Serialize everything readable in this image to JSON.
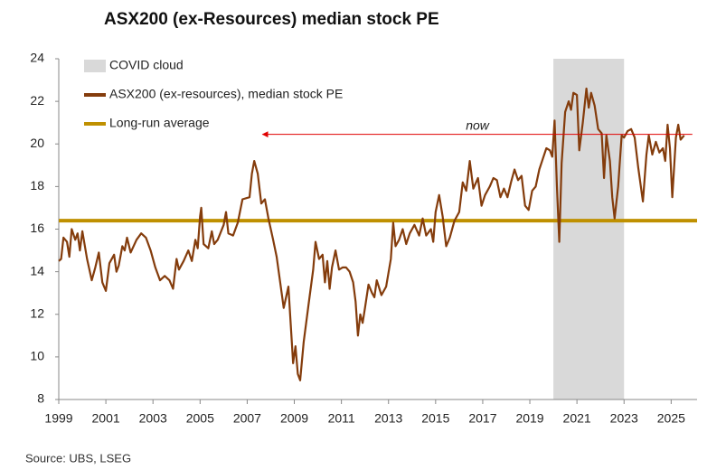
{
  "chart_data": {
    "type": "line",
    "title": "ASX200 (ex-Resources) median stock PE",
    "source": "Source: UBS, LSEG",
    "xlim": [
      1999,
      2026.1
    ],
    "ylim": [
      8,
      24
    ],
    "xticks": [
      1999,
      2001,
      2003,
      2005,
      2007,
      2009,
      2011,
      2013,
      2015,
      2017,
      2019,
      2021,
      2023,
      2025
    ],
    "yticks": [
      8,
      10,
      12,
      14,
      16,
      18,
      20,
      22,
      24
    ],
    "shaded_regions": [
      {
        "name": "COVID cloud",
        "start": 2020,
        "end": 2023,
        "color": "#d9d9d9"
      }
    ],
    "reference_lines": [
      {
        "name": "Long-run average",
        "value": 16.4,
        "color": "#bf9000"
      }
    ],
    "annotations": [
      {
        "text": "now",
        "x_start": 2025.9,
        "x_end": 2007.65,
        "y": 20.45,
        "color": "#e00000"
      }
    ],
    "x": [
      1999.0,
      1999.1,
      1999.2,
      1999.35,
      1999.45,
      1999.55,
      1999.7,
      1999.8,
      1999.9,
      2000.0,
      2000.2,
      2000.4,
      2000.55,
      2000.7,
      2000.85,
      2001.0,
      2001.15,
      2001.35,
      2001.45,
      2001.55,
      2001.7,
      2001.8,
      2001.9,
      2002.05,
      2002.3,
      2002.5,
      2002.7,
      2002.9,
      2003.1,
      2003.3,
      2003.5,
      2003.7,
      2003.85,
      2004.0,
      2004.1,
      2004.3,
      2004.5,
      2004.65,
      2004.8,
      2004.9,
      2005.0,
      2005.05,
      2005.15,
      2005.35,
      2005.5,
      2005.6,
      2005.75,
      2006.0,
      2006.1,
      2006.2,
      2006.4,
      2006.6,
      2006.8,
      2007.1,
      2007.2,
      2007.3,
      2007.45,
      2007.6,
      2007.75,
      2007.9,
      2008.1,
      2008.25,
      2008.4,
      2008.55,
      2008.65,
      2008.75,
      2008.85,
      2008.95,
      2009.05,
      2009.15,
      2009.25,
      2009.4,
      2009.6,
      2009.8,
      2009.9,
      2010.05,
      2010.2,
      2010.3,
      2010.4,
      2010.5,
      2010.6,
      2010.75,
      2010.9,
      2011.05,
      2011.2,
      2011.35,
      2011.5,
      2011.6,
      2011.7,
      2011.8,
      2011.9,
      2012.0,
      2012.15,
      2012.3,
      2012.4,
      2012.5,
      2012.7,
      2012.9,
      2013.1,
      2013.2,
      2013.3,
      2013.45,
      2013.6,
      2013.75,
      2013.9,
      2014.1,
      2014.3,
      2014.45,
      2014.6,
      2014.8,
      2014.9,
      2015.0,
      2015.15,
      2015.3,
      2015.45,
      2015.6,
      2015.8,
      2016.0,
      2016.15,
      2016.3,
      2016.45,
      2016.6,
      2016.8,
      2016.95,
      2017.1,
      2017.3,
      2017.45,
      2017.6,
      2017.75,
      2017.9,
      2018.05,
      2018.2,
      2018.35,
      2018.5,
      2018.65,
      2018.8,
      2018.95,
      2019.1,
      2019.25,
      2019.4,
      2019.55,
      2019.7,
      2019.85,
      2019.95,
      2020.05,
      2020.15,
      2020.25,
      2020.35,
      2020.5,
      2020.65,
      2020.75,
      2020.85,
      2021.0,
      2021.1,
      2021.25,
      2021.4,
      2021.5,
      2021.6,
      2021.75,
      2021.9,
      2022.05,
      2022.15,
      2022.25,
      2022.4,
      2022.5,
      2022.6,
      2022.75,
      2022.9,
      2023.0,
      2023.15,
      2023.3,
      2023.45,
      2023.6,
      2023.8,
      2023.95,
      2024.05,
      2024.2,
      2024.35,
      2024.5,
      2024.65,
      2024.75,
      2024.85,
      2024.95,
      2025.05,
      2025.2,
      2025.3,
      2025.4,
      2025.55
    ],
    "series": [
      {
        "name": "ASX200 (ex-resources), median stock PE",
        "color": "#843c0c",
        "values": [
          14.5,
          14.6,
          15.6,
          15.4,
          14.7,
          16.0,
          15.5,
          15.8,
          15.0,
          15.9,
          14.6,
          13.6,
          14.2,
          14.9,
          13.5,
          13.1,
          14.4,
          14.8,
          14.0,
          14.3,
          15.2,
          15.0,
          15.6,
          14.9,
          15.5,
          15.8,
          15.6,
          15.0,
          14.2,
          13.6,
          13.8,
          13.6,
          13.2,
          14.6,
          14.1,
          14.5,
          15.0,
          14.5,
          15.5,
          15.1,
          16.6,
          17.0,
          15.3,
          15.1,
          15.9,
          15.3,
          15.5,
          16.2,
          16.8,
          15.8,
          15.7,
          16.3,
          17.4,
          17.5,
          18.6,
          19.2,
          18.6,
          17.2,
          17.4,
          16.5,
          15.5,
          14.7,
          13.5,
          12.3,
          12.8,
          13.3,
          11.5,
          9.7,
          10.5,
          9.2,
          8.9,
          10.7,
          12.4,
          14.1,
          15.4,
          14.6,
          14.8,
          13.5,
          14.5,
          13.2,
          14.2,
          15.0,
          14.1,
          14.2,
          14.2,
          14.0,
          13.5,
          12.6,
          11.0,
          12.0,
          11.6,
          12.3,
          13.4,
          13.0,
          12.8,
          13.6,
          12.9,
          13.3,
          14.6,
          16.3,
          15.2,
          15.5,
          16.0,
          15.3,
          15.8,
          16.2,
          15.7,
          16.5,
          15.7,
          16.0,
          15.4,
          16.8,
          17.6,
          16.6,
          15.2,
          15.6,
          16.4,
          16.8,
          18.2,
          17.8,
          19.2,
          17.9,
          18.4,
          17.1,
          17.6,
          18.0,
          18.4,
          18.3,
          17.5,
          17.9,
          17.5,
          18.2,
          18.8,
          18.3,
          18.5,
          17.1,
          16.9,
          17.8,
          18.0,
          18.8,
          19.3,
          19.8,
          19.7,
          19.4,
          21.1,
          18.0,
          15.4,
          19.1,
          21.5,
          22.0,
          21.6,
          22.4,
          22.3,
          19.7,
          21.0,
          22.6,
          21.7,
          22.4,
          21.8,
          20.7,
          20.5,
          18.4,
          20.4,
          19.2,
          17.5,
          16.5,
          18.0,
          20.4,
          20.3,
          20.6,
          20.7,
          20.3,
          18.9,
          17.3,
          19.5,
          20.4,
          19.5,
          20.1,
          19.6,
          19.8,
          19.2,
          20.9,
          19.8,
          17.5,
          20.3,
          20.9,
          20.2,
          20.4
        ]
      }
    ]
  }
}
